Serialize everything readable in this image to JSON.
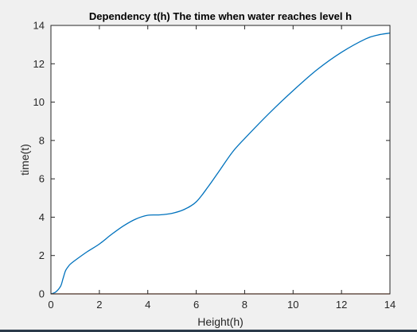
{
  "figure": {
    "background": "#f0f0f0",
    "axes_background": "#ffffff"
  },
  "chart_data": {
    "type": "line",
    "title": "Dependency t(h) The time when water reaches level h",
    "xlabel": "Height(h)",
    "ylabel": "time(t)",
    "xlim": [
      0,
      14
    ],
    "ylim": [
      0,
      14
    ],
    "xticks": [
      0,
      2,
      4,
      6,
      8,
      10,
      12,
      14
    ],
    "yticks": [
      0,
      2,
      4,
      6,
      8,
      10,
      12,
      14
    ],
    "grid": false,
    "series": [
      {
        "color": "#0072BD",
        "x": [
          0,
          0.2,
          0.4,
          0.5,
          0.6,
          0.7,
          0.8,
          1.0,
          1.5,
          2.0,
          2.5,
          3.0,
          3.5,
          4.0,
          4.5,
          5.0,
          5.5,
          6.0,
          6.5,
          7.0,
          7.5,
          8.0,
          9.0,
          10.0,
          11.0,
          12.0,
          13.0,
          13.5,
          14.0
        ],
        "y": [
          0,
          0.1,
          0.4,
          0.8,
          1.2,
          1.4,
          1.55,
          1.75,
          2.2,
          2.6,
          3.1,
          3.55,
          3.9,
          4.1,
          4.12,
          4.2,
          4.4,
          4.8,
          5.6,
          6.5,
          7.4,
          8.1,
          9.4,
          10.6,
          11.7,
          12.6,
          13.3,
          13.5,
          13.6
        ]
      },
      {
        "color": "#D95319",
        "x": [
          0,
          14
        ],
        "y": [
          0,
          0
        ]
      }
    ]
  }
}
